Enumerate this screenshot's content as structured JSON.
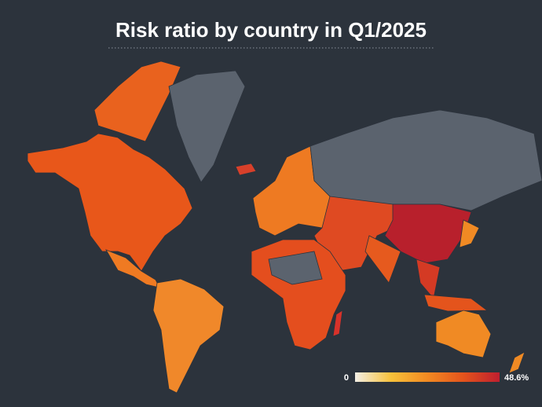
{
  "title": "Risk ratio by country in Q1/2025",
  "legend": {
    "min": 0,
    "max": {
      "value": 48.6,
      "label": "48.6%"
    },
    "colors": [
      "#f3efe6",
      "#f7c13a",
      "#f28a22",
      "#e4531c",
      "#c01f2f"
    ]
  }
}
